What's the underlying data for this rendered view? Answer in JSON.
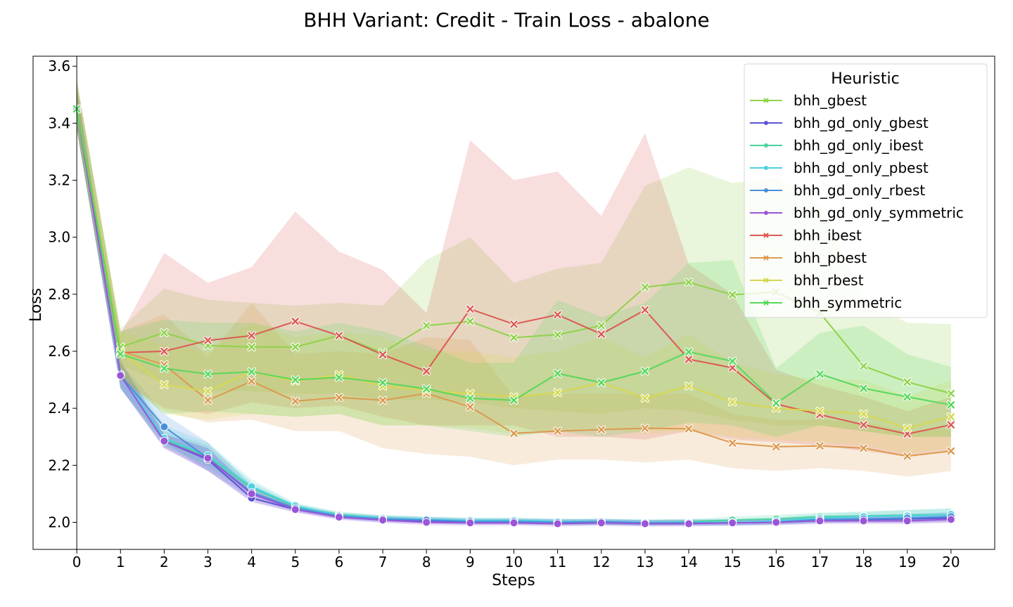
{
  "chart_data": {
    "type": "line",
    "title": "BHH Variant: Credit - Train Loss - abalone",
    "xlabel": "Steps",
    "ylabel": "Loss",
    "x": [
      0,
      1,
      2,
      3,
      4,
      5,
      6,
      7,
      8,
      9,
      10,
      11,
      12,
      13,
      14,
      15,
      16,
      17,
      18,
      19,
      20
    ],
    "xlim": [
      -1,
      21
    ],
    "ylim": [
      1.905,
      3.635
    ],
    "yticks": [
      2.0,
      2.2,
      2.4,
      2.6,
      2.8,
      3.0,
      3.2,
      3.4,
      3.6
    ],
    "grid": false,
    "legend": {
      "title": "Heuristic",
      "placement": "top-right"
    },
    "series": [
      {
        "name": "bhh_gbest",
        "color": "#8fd34a",
        "marker": "x",
        "values": [
          3.45,
          2.615,
          2.665,
          2.62,
          2.615,
          2.615,
          2.655,
          2.595,
          2.69,
          2.705,
          2.648,
          2.658,
          2.69,
          2.825,
          2.842,
          2.798,
          2.808,
          2.735,
          2.548,
          2.492,
          2.452
        ],
        "lower": [
          3.38,
          2.55,
          2.49,
          2.46,
          2.46,
          2.45,
          2.45,
          2.43,
          2.43,
          2.42,
          2.4,
          2.39,
          2.38,
          2.4,
          2.39,
          2.36,
          2.34,
          2.34,
          2.32,
          2.3,
          2.3
        ],
        "upper": [
          3.55,
          2.68,
          2.82,
          2.78,
          2.77,
          2.76,
          2.77,
          2.76,
          2.92,
          3.0,
          2.84,
          2.89,
          2.91,
          3.18,
          3.245,
          3.19,
          3.21,
          3.12,
          2.78,
          2.7,
          2.695
        ]
      },
      {
        "name": "bhh_gd_only_gbest",
        "color": "#5b55d6",
        "marker": "o",
        "values": [
          3.45,
          2.52,
          2.285,
          2.22,
          2.085,
          2.045,
          2.02,
          2.01,
          2.005,
          2.002,
          2.002,
          2.0,
          2.0,
          1.998,
          2.0,
          2.0,
          2.003,
          2.01,
          2.01,
          2.012,
          2.015
        ],
        "lower": [
          3.38,
          2.47,
          2.26,
          2.18,
          2.07,
          2.035,
          2.012,
          2.0,
          1.995,
          1.992,
          1.992,
          1.99,
          1.99,
          1.988,
          1.99,
          1.99,
          1.993,
          1.998,
          1.998,
          1.998,
          2.0
        ],
        "upper": [
          3.52,
          2.57,
          2.31,
          2.26,
          2.11,
          2.055,
          2.03,
          2.02,
          2.015,
          2.012,
          2.012,
          2.01,
          2.01,
          2.008,
          2.01,
          2.01,
          2.013,
          2.02,
          2.022,
          2.026,
          2.03
        ]
      },
      {
        "name": "bhh_gd_only_ibest",
        "color": "#4bd49f",
        "marker": "o",
        "values": [
          3.45,
          2.515,
          2.29,
          2.23,
          2.12,
          2.055,
          2.028,
          2.015,
          2.01,
          2.005,
          2.005,
          2.002,
          2.002,
          2.0,
          2.002,
          2.008,
          2.012,
          2.02,
          2.022,
          2.025,
          2.028
        ],
        "lower": [
          3.38,
          2.47,
          2.265,
          2.19,
          2.1,
          2.045,
          2.018,
          2.005,
          2.0,
          1.995,
          1.995,
          1.992,
          1.992,
          1.99,
          1.992,
          1.996,
          1.998,
          2.004,
          2.004,
          2.006,
          2.008
        ],
        "upper": [
          3.52,
          2.56,
          2.32,
          2.27,
          2.14,
          2.065,
          2.038,
          2.025,
          2.02,
          2.015,
          2.015,
          2.012,
          2.012,
          2.01,
          2.012,
          2.02,
          2.026,
          2.034,
          2.038,
          2.044,
          2.048
        ]
      },
      {
        "name": "bhh_gd_only_pbest",
        "color": "#4fd0e0",
        "marker": "o",
        "values": [
          3.45,
          2.52,
          2.295,
          2.235,
          2.125,
          2.058,
          2.025,
          2.015,
          2.01,
          2.007,
          2.007,
          2.003,
          2.003,
          2.0,
          2.0,
          2.0,
          2.005,
          2.015,
          2.02,
          2.022,
          2.028
        ],
        "lower": [
          3.38,
          2.47,
          2.27,
          2.2,
          2.105,
          2.048,
          2.015,
          2.005,
          2.0,
          1.997,
          1.997,
          1.993,
          1.993,
          1.99,
          1.99,
          1.99,
          1.994,
          2.0,
          2.004,
          2.004,
          2.008
        ],
        "upper": [
          3.52,
          2.56,
          2.34,
          2.28,
          2.15,
          2.068,
          2.035,
          2.025,
          2.02,
          2.017,
          2.017,
          2.013,
          2.013,
          2.01,
          2.01,
          2.012,
          2.018,
          2.03,
          2.036,
          2.042,
          2.05
        ]
      },
      {
        "name": "bhh_gd_only_rbest",
        "color": "#4a8fdb",
        "marker": "o",
        "values": [
          3.45,
          2.515,
          2.335,
          2.225,
          2.105,
          2.05,
          2.022,
          2.012,
          2.008,
          2.003,
          2.003,
          2.0,
          2.002,
          1.998,
          1.998,
          1.998,
          2.0,
          2.01,
          2.012,
          2.015,
          2.02
        ],
        "lower": [
          3.38,
          2.47,
          2.28,
          2.18,
          2.085,
          2.04,
          2.012,
          2.002,
          1.998,
          1.993,
          1.993,
          1.99,
          1.992,
          1.988,
          1.988,
          1.988,
          1.99,
          1.998,
          2.0,
          2.0,
          2.004
        ],
        "upper": [
          3.52,
          2.56,
          2.38,
          2.28,
          2.13,
          2.06,
          2.032,
          2.022,
          2.018,
          2.013,
          2.013,
          2.01,
          2.012,
          2.008,
          2.008,
          2.008,
          2.012,
          2.022,
          2.026,
          2.03,
          2.036
        ]
      },
      {
        "name": "bhh_gd_only_symmetric",
        "color": "#9b55d8",
        "marker": "o",
        "values": [
          3.45,
          2.515,
          2.285,
          2.225,
          2.1,
          2.045,
          2.018,
          2.008,
          2.0,
          1.998,
          1.998,
          1.995,
          1.998,
          1.995,
          1.995,
          1.998,
          2.0,
          2.005,
          2.005,
          2.005,
          2.01
        ],
        "lower": [
          3.38,
          2.47,
          2.26,
          2.18,
          2.075,
          2.035,
          2.008,
          1.998,
          1.99,
          1.988,
          1.988,
          1.985,
          1.988,
          1.985,
          1.985,
          1.988,
          1.99,
          1.994,
          1.994,
          1.994,
          1.998
        ],
        "upper": [
          3.52,
          2.56,
          2.31,
          2.26,
          2.12,
          2.055,
          2.028,
          2.018,
          2.01,
          2.008,
          2.008,
          2.005,
          2.008,
          2.005,
          2.005,
          2.008,
          2.01,
          2.016,
          2.018,
          2.018,
          2.022
        ]
      },
      {
        "name": "bhh_ibest",
        "color": "#dc5a54",
        "marker": "x",
        "values": [
          3.45,
          2.595,
          2.6,
          2.638,
          2.655,
          2.705,
          2.655,
          2.588,
          2.53,
          2.748,
          2.695,
          2.728,
          2.66,
          2.745,
          2.572,
          2.542,
          2.415,
          2.378,
          2.342,
          2.31,
          2.342
        ],
        "lower": [
          3.38,
          2.5,
          2.4,
          2.38,
          2.42,
          2.4,
          2.41,
          2.37,
          2.34,
          2.34,
          2.34,
          2.3,
          2.3,
          2.29,
          2.32,
          2.29,
          2.28,
          2.27,
          2.25,
          2.23,
          2.25
        ],
        "upper": [
          3.55,
          2.66,
          2.945,
          2.84,
          2.895,
          3.09,
          2.95,
          2.885,
          2.735,
          3.34,
          3.2,
          3.23,
          3.075,
          3.365,
          2.905,
          2.8,
          2.535,
          2.48,
          2.44,
          2.39,
          2.44
        ]
      },
      {
        "name": "bhh_pbest",
        "color": "#dc9a4e",
        "marker": "x",
        "values": [
          3.45,
          2.6,
          2.553,
          2.428,
          2.495,
          2.425,
          2.438,
          2.428,
          2.452,
          2.405,
          2.312,
          2.32,
          2.325,
          2.33,
          2.328,
          2.278,
          2.265,
          2.268,
          2.26,
          2.232,
          2.25
        ],
        "lower": [
          3.38,
          2.5,
          2.39,
          2.35,
          2.36,
          2.32,
          2.32,
          2.26,
          2.24,
          2.23,
          2.2,
          2.22,
          2.22,
          2.21,
          2.22,
          2.19,
          2.18,
          2.19,
          2.18,
          2.16,
          2.18
        ],
        "upper": [
          3.55,
          2.67,
          2.73,
          2.58,
          2.77,
          2.59,
          2.6,
          2.59,
          2.65,
          2.64,
          2.44,
          2.45,
          2.45,
          2.45,
          2.45,
          2.38,
          2.36,
          2.36,
          2.35,
          2.32,
          2.33
        ]
      },
      {
        "name": "bhh_rbest",
        "color": "#d6d84e",
        "marker": "x",
        "values": [
          3.45,
          2.598,
          2.483,
          2.46,
          2.528,
          2.495,
          2.518,
          2.478,
          2.462,
          2.452,
          2.44,
          2.455,
          2.49,
          2.435,
          2.478,
          2.422,
          2.4,
          2.39,
          2.38,
          2.33,
          2.37
        ],
        "lower": [
          3.38,
          2.52,
          2.38,
          2.36,
          2.38,
          2.37,
          2.38,
          2.34,
          2.34,
          2.33,
          2.31,
          2.32,
          2.33,
          2.31,
          2.32,
          2.3,
          2.29,
          2.28,
          2.27,
          2.24,
          2.26
        ],
        "upper": [
          3.55,
          2.67,
          2.62,
          2.6,
          2.7,
          2.65,
          2.67,
          2.65,
          2.6,
          2.6,
          2.58,
          2.6,
          2.65,
          2.58,
          2.66,
          2.56,
          2.52,
          2.5,
          2.5,
          2.44,
          2.5
        ]
      },
      {
        "name": "bhh_symmetric",
        "color": "#58d85c",
        "marker": "x",
        "values": [
          3.45,
          2.59,
          2.54,
          2.52,
          2.528,
          2.5,
          2.508,
          2.49,
          2.468,
          2.435,
          2.428,
          2.522,
          2.49,
          2.53,
          2.598,
          2.565,
          2.418,
          2.52,
          2.47,
          2.44,
          2.412
        ],
        "lower": [
          3.38,
          2.5,
          2.38,
          2.39,
          2.38,
          2.37,
          2.38,
          2.34,
          2.34,
          2.32,
          2.3,
          2.32,
          2.3,
          2.32,
          2.35,
          2.34,
          2.3,
          2.34,
          2.32,
          2.3,
          2.3
        ],
        "upper": [
          3.55,
          2.67,
          2.71,
          2.7,
          2.7,
          2.67,
          2.7,
          2.67,
          2.62,
          2.56,
          2.56,
          2.78,
          2.72,
          2.77,
          2.91,
          2.92,
          2.54,
          2.665,
          2.69,
          2.59,
          2.545
        ]
      }
    ]
  }
}
